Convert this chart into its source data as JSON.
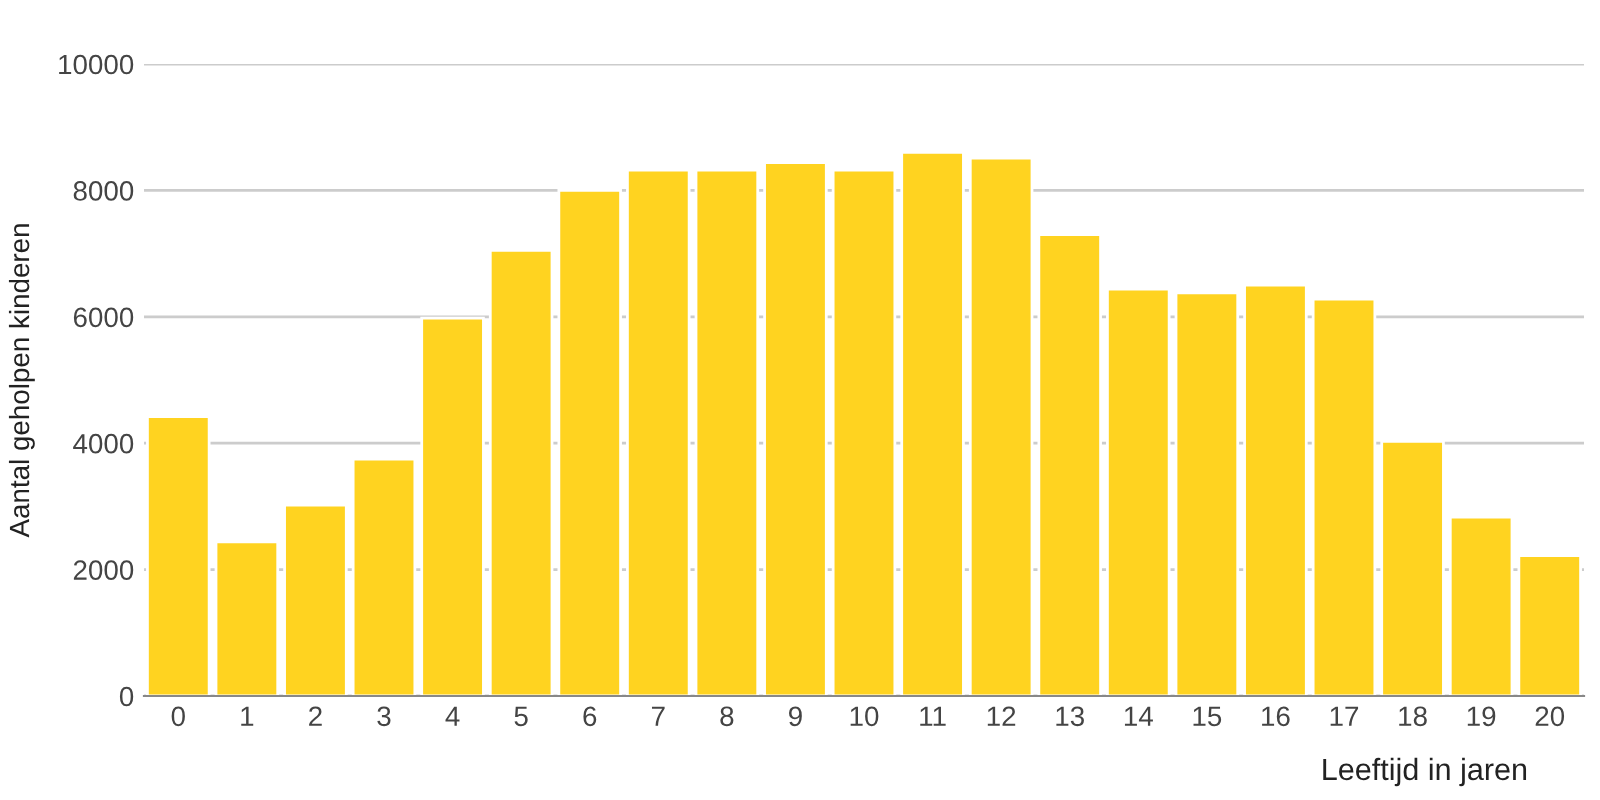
{
  "chart_data": {
    "type": "bar",
    "xlabel": "Leeftijd in jaren",
    "ylabel": "Aantal geholpen kinderen",
    "categories": [
      "0",
      "1",
      "2",
      "3",
      "4",
      "5",
      "6",
      "7",
      "8",
      "9",
      "10",
      "11",
      "12",
      "13",
      "14",
      "15",
      "16",
      "17",
      "18",
      "19",
      "20"
    ],
    "values": [
      4420,
      2440,
      3020,
      3750,
      5980,
      7050,
      8000,
      8320,
      8320,
      8440,
      8320,
      8600,
      8510,
      7300,
      6440,
      6380,
      6500,
      6280,
      4030,
      2830,
      2220
    ],
    "color": "#ffd320",
    "ylim": [
      0,
      10000
    ],
    "yticks": [
      0,
      2000,
      4000,
      6000,
      8000,
      10000
    ],
    "grid": "y"
  }
}
